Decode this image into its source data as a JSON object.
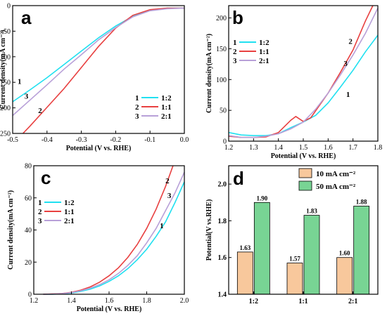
{
  "colors": {
    "s1": "#20e0f0",
    "s2": "#e84040",
    "s3": "#b8a0d8",
    "bar10": "#f8c89c",
    "bar50": "#78d494"
  },
  "chart_data": [
    {
      "id": "a",
      "type": "line",
      "letter": "a",
      "xlabel": "Potential (V vs. RHE)",
      "ylabel": "Current density(mA cm⁻²)",
      "xlim": [
        -0.5,
        0.0
      ],
      "ylim": [
        -250,
        0
      ],
      "xticks": [
        -0.5,
        -0.4,
        -0.3,
        -0.2,
        -0.1,
        0.0
      ],
      "xtick_labels": [
        "-0.5",
        "-0.4",
        "-0.3",
        "-0.2",
        "-0.1",
        "0.0"
      ],
      "yticks": [
        -250,
        -200,
        -150,
        -100,
        -50,
        0
      ],
      "ytick_labels": [
        "-250",
        "-200",
        "-150",
        "-100",
        "-50",
        "0"
      ],
      "legend": {
        "position": "bottom-right",
        "entries": [
          {
            "num": "1",
            "label": "1:2"
          },
          {
            "num": "2",
            "label": "1:1"
          },
          {
            "num": "3",
            "label": "2:1"
          }
        ]
      },
      "series": [
        {
          "num": "1",
          "color_key": "s1",
          "x": [
            -0.5,
            -0.45,
            -0.4,
            -0.35,
            -0.3,
            -0.25,
            -0.2,
            -0.15,
            -0.1,
            -0.05,
            0.0
          ],
          "y": [
            -188,
            -165,
            -141,
            -115,
            -89,
            -63,
            -40,
            -21,
            -9,
            -5,
            -5
          ]
        },
        {
          "num": "2",
          "color_key": "s2",
          "x": [
            -0.47,
            -0.45,
            -0.4,
            -0.35,
            -0.3,
            -0.25,
            -0.2,
            -0.15,
            -0.1,
            -0.05,
            0.0
          ],
          "y": [
            -250,
            -236,
            -199,
            -162,
            -121,
            -80,
            -44,
            -19,
            -8,
            -5,
            -5
          ]
        },
        {
          "num": "3",
          "color_key": "s3",
          "x": [
            -0.5,
            -0.45,
            -0.4,
            -0.35,
            -0.3,
            -0.25,
            -0.2,
            -0.15,
            -0.1,
            -0.05,
            0.0
          ],
          "y": [
            -215,
            -185,
            -155,
            -124,
            -96,
            -67,
            -43,
            -22,
            -10,
            -6,
            -5
          ]
        }
      ],
      "curve_labels": [
        {
          "text": "1",
          "x": -0.48,
          "y": -153
        },
        {
          "text": "2",
          "x": -0.42,
          "y": -210
        },
        {
          "text": "3",
          "x": -0.46,
          "y": -182
        }
      ]
    },
    {
      "id": "b",
      "type": "line",
      "letter": "b",
      "xlabel": "Potential (V vs. RHE)",
      "ylabel": "Current density(mA cm⁻²)",
      "xlim": [
        1.2,
        1.8
      ],
      "ylim": [
        0,
        220
      ],
      "xticks": [
        1.2,
        1.3,
        1.4,
        1.5,
        1.6,
        1.7,
        1.8
      ],
      "xtick_labels": [
        "1.2",
        "1.3",
        "1.4",
        "1.5",
        "1.6",
        "1.7",
        "1.8"
      ],
      "yticks": [
        0,
        50,
        100,
        150,
        200
      ],
      "ytick_labels": [
        "0",
        "50",
        "100",
        "150",
        "200"
      ],
      "legend": {
        "position": "top-left",
        "entries": [
          {
            "num": "1",
            "label": "1:2"
          },
          {
            "num": "2",
            "label": "1:1"
          },
          {
            "num": "3",
            "label": "2:1"
          }
        ]
      },
      "series": [
        {
          "num": "1",
          "color_key": "s1",
          "x": [
            1.2,
            1.25,
            1.3,
            1.35,
            1.4,
            1.45,
            1.5,
            1.55,
            1.6,
            1.65,
            1.7,
            1.75,
            1.8
          ],
          "y": [
            14,
            10,
            9,
            9,
            12,
            22,
            31,
            42,
            62,
            88,
            115,
            145,
            172
          ]
        },
        {
          "num": "2",
          "color_key": "s2",
          "x": [
            1.2,
            1.25,
            1.3,
            1.35,
            1.4,
            1.45,
            1.47,
            1.5,
            1.53,
            1.6,
            1.65,
            1.7,
            1.75,
            1.78
          ],
          "y": [
            8,
            6,
            6,
            7,
            14,
            34,
            40,
            32,
            38,
            78,
            112,
            148,
            195,
            220
          ]
        },
        {
          "num": "3",
          "color_key": "s3",
          "x": [
            1.2,
            1.25,
            1.3,
            1.35,
            1.4,
            1.45,
            1.5,
            1.55,
            1.6,
            1.65,
            1.7,
            1.75,
            1.8
          ],
          "y": [
            9,
            6,
            6,
            8,
            12,
            20,
            31,
            52,
            78,
            108,
            140,
            175,
            216
          ]
        }
      ],
      "curve_labels": [
        {
          "text": "1",
          "x": 1.68,
          "y": 72
        },
        {
          "text": "2",
          "x": 1.69,
          "y": 158
        },
        {
          "text": "3",
          "x": 1.67,
          "y": 122
        }
      ]
    },
    {
      "id": "c",
      "type": "line",
      "letter": "c",
      "xlabel": "Potential (V vs. RHE)",
      "ylabel": "Current density(mA cm⁻²)",
      "xlim": [
        1.2,
        2.0
      ],
      "ylim": [
        0,
        80
      ],
      "xticks": [
        1.2,
        1.4,
        1.6,
        1.8,
        2.0
      ],
      "xtick_labels": [
        "1.2",
        "1.4",
        "1.6",
        "1.8",
        "2.0"
      ],
      "yticks": [
        0,
        20,
        40,
        60,
        80
      ],
      "ytick_labels": [
        "0",
        "20",
        "40",
        "60",
        "80"
      ],
      "legend": {
        "position": "top-left",
        "entries": [
          {
            "num": "1",
            "label": "1:2"
          },
          {
            "num": "2",
            "label": "1:1"
          },
          {
            "num": "3",
            "label": "2:1"
          }
        ]
      },
      "series": [
        {
          "num": "1",
          "color_key": "s1",
          "x": [
            1.25,
            1.3,
            1.35,
            1.4,
            1.45,
            1.5,
            1.55,
            1.6,
            1.65,
            1.7,
            1.75,
            1.8,
            1.85,
            1.9,
            1.95,
            2.0
          ],
          "y": [
            0,
            0,
            0.3,
            0.8,
            1.8,
            3.2,
            5.2,
            8,
            11.5,
            16,
            21.5,
            28,
            36,
            45,
            57,
            70
          ]
        },
        {
          "num": "2",
          "color_key": "s2",
          "x": [
            1.25,
            1.3,
            1.35,
            1.4,
            1.45,
            1.5,
            1.55,
            1.6,
            1.65,
            1.7,
            1.75,
            1.8,
            1.85,
            1.9,
            1.94
          ],
          "y": [
            0,
            0.2,
            0.5,
            1.2,
            2.6,
            4.6,
            7.5,
            11.5,
            16.5,
            23,
            31,
            41,
            53,
            67,
            80
          ]
        },
        {
          "num": "3",
          "color_key": "s3",
          "x": [
            1.25,
            1.3,
            1.35,
            1.4,
            1.45,
            1.5,
            1.55,
            1.6,
            1.65,
            1.7,
            1.75,
            1.8,
            1.85,
            1.9,
            1.95,
            2.0
          ],
          "y": [
            0,
            0.1,
            0.4,
            1,
            2.2,
            3.8,
            6,
            9,
            13,
            18,
            24,
            32,
            41,
            52,
            63,
            76
          ]
        }
      ],
      "curve_labels": [
        {
          "text": "1",
          "x": 1.88,
          "y": 41
        },
        {
          "text": "2",
          "x": 1.91,
          "y": 69
        },
        {
          "text": "3",
          "x": 1.92,
          "y": 60
        }
      ]
    },
    {
      "id": "d",
      "type": "bar",
      "letter": "d",
      "ylabel": "Potential(V vs.RHE)",
      "categories": [
        "1:2",
        "1:1",
        "2:1"
      ],
      "ylim": [
        1.4,
        2.1
      ],
      "yticks": [
        1.4,
        1.6,
        1.8,
        2.0
      ],
      "ytick_labels": [
        "1.4",
        "1.6",
        "1.8",
        "2.0"
      ],
      "legend": {
        "position": "top-right"
      },
      "series": [
        {
          "name": "10 mA cm⁻²",
          "color_key": "bar10",
          "values": [
            1.63,
            1.57,
            1.6
          ],
          "labels": [
            "1.63",
            "1.57",
            "1.60"
          ]
        },
        {
          "name": "50 mA cm⁻²",
          "color_key": "bar50",
          "values": [
            1.9,
            1.83,
            1.88
          ],
          "labels": [
            "1.90",
            "1.83",
            "1.88"
          ]
        }
      ]
    }
  ]
}
